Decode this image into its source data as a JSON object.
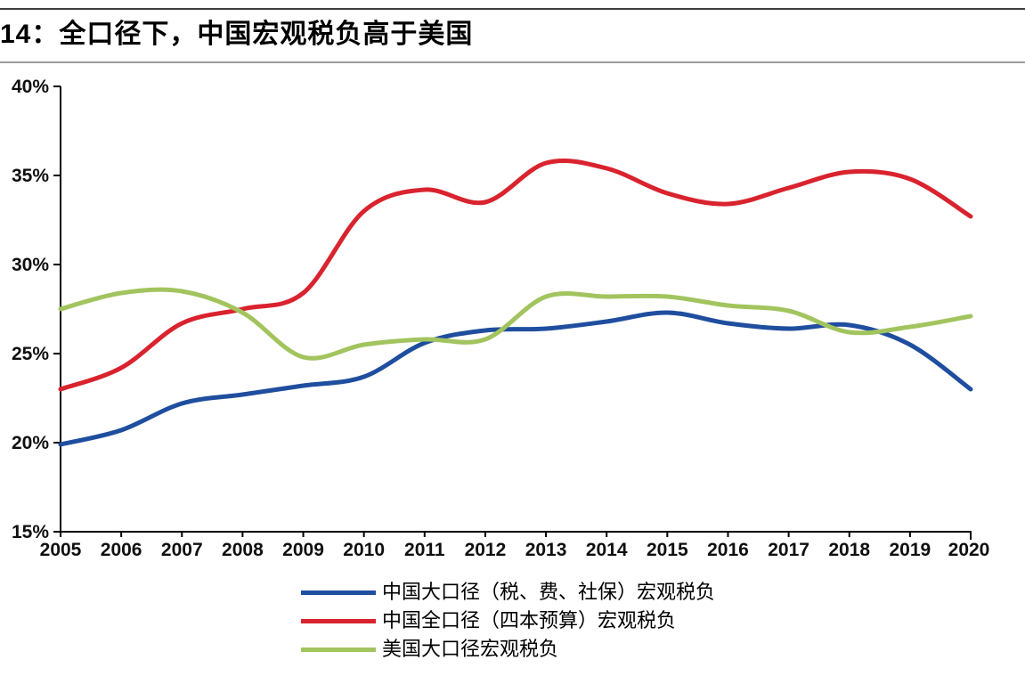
{
  "header": {
    "title": "14：全口径下，中国宏观税负高于美国"
  },
  "colors": {
    "china_large_caliber": "#1F4E9F",
    "china_full_caliber": "#D9232E",
    "us_large_caliber": "#A2C45E",
    "axis": "#000000",
    "tick_label": "#0f0f0f",
    "title_divider": "#9b9b9b",
    "top_border": "#3d3d3d"
  },
  "chart_data": {
    "type": "line",
    "title": "14：全口径下，中国宏观税负高于美国",
    "x": [
      2005,
      2006,
      2007,
      2008,
      2009,
      2010,
      2011,
      2012,
      2013,
      2014,
      2015,
      2016,
      2017,
      2018,
      2019,
      2020
    ],
    "x_tick_labels": [
      "2005",
      "2006",
      "2007",
      "2008",
      "2009",
      "2010",
      "2011",
      "2012",
      "2013",
      "2014",
      "2015",
      "2016",
      "2017",
      "2018",
      "2019",
      "2020"
    ],
    "y_tick_labels": [
      "15%",
      "20%",
      "25%",
      "30%",
      "35%",
      "40%"
    ],
    "y_ticks": [
      15,
      20,
      25,
      30,
      35,
      40
    ],
    "ylim": [
      15,
      40
    ],
    "y_unit": "%",
    "grid": false,
    "smooth": true,
    "legend_position": "bottom",
    "series": [
      {
        "name": "中国大口径（税、费、社保）宏观税负",
        "color": "#1F4E9F",
        "values": [
          19.9,
          20.7,
          22.2,
          22.7,
          23.2,
          23.7,
          25.6,
          26.3,
          26.4,
          26.8,
          27.3,
          26.7,
          26.4,
          26.6,
          25.5,
          23.0
        ]
      },
      {
        "name": "中国全口径（四本预算）宏观税负",
        "color": "#D9232E",
        "values": [
          23.0,
          24.2,
          26.7,
          27.5,
          28.4,
          33.0,
          34.2,
          33.5,
          35.7,
          35.4,
          34.0,
          33.4,
          34.3,
          35.2,
          34.8,
          32.7
        ]
      },
      {
        "name": "美国大口径宏观税负",
        "color": "#A2C45E",
        "values": [
          27.5,
          28.4,
          28.5,
          27.3,
          24.8,
          25.5,
          25.8,
          25.8,
          28.2,
          28.2,
          28.2,
          27.7,
          27.4,
          26.2,
          26.5,
          27.1
        ]
      }
    ]
  }
}
